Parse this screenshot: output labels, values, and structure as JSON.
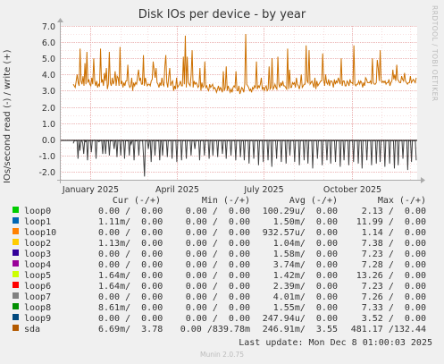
{
  "chart_data": {
    "type": "line",
    "title": "Disk IOs per device - by year",
    "ylabel": "IOs/second read (-) / write (+)",
    "ylim": [
      -2.5,
      7.0
    ],
    "yticks": [
      -2.0,
      -1.0,
      0.0,
      1.0,
      2.0,
      3.0,
      4.0,
      5.0,
      6.0,
      7.0
    ],
    "ytick_labels": [
      "-2.0",
      "-1.0",
      "0.0",
      "1.0",
      "2.0",
      "3.0",
      "4.0",
      "5.0",
      "6.0",
      "7.0"
    ],
    "xrange": [
      "2024-11-30",
      "2025-12-08"
    ],
    "xticks": [
      {
        "date": "2025-01-01",
        "label": "January 2025"
      },
      {
        "date": "2025-04-01",
        "label": "April 2025"
      },
      {
        "date": "2025-07-01",
        "label": "July 2025"
      },
      {
        "date": "2025-10-01",
        "label": "October 2025"
      }
    ],
    "grid": true,
    "series": [
      {
        "name": "sda",
        "write_color": "#cc7000",
        "read_color": "#404040",
        "x_start": "2024-12-14",
        "x_end": "2025-12-07",
        "write": [
          3.4,
          3.3,
          3.2,
          3.6,
          4.0,
          3.5,
          3.3,
          5.6,
          3.6,
          3.4,
          3.9,
          3.3,
          4.7,
          3.4,
          5.4,
          3.5,
          3.7,
          3.4,
          3.3,
          3.8,
          3.4,
          5.0,
          3.6,
          3.3,
          3.6,
          3.2,
          3.4,
          3.3,
          5.6,
          3.5,
          3.7,
          3.3,
          4.1,
          3.6,
          4.4,
          3.1,
          3.4,
          5.4,
          3.5,
          3.3,
          3.8,
          3.4,
          3.6,
          4.2,
          3.3,
          3.9,
          3.8,
          3.3,
          5.7,
          3.4,
          3.6,
          3.2,
          3.5,
          3.3,
          3.6,
          3.6,
          4.6,
          3.4,
          3.2,
          3.3,
          3.8,
          3.0,
          3.5,
          3.3,
          3.5,
          3.4,
          3.9,
          4.3,
          3.6,
          3.8,
          3.4,
          3.4,
          5.2,
          3.3,
          3.8,
          3.5,
          3.3,
          3.4,
          3.4,
          3.3,
          3.6,
          3.7,
          4.8,
          4.3,
          3.8,
          4.4,
          3.5,
          3.4,
          3.2,
          3.5,
          3.3,
          3.8,
          3.4,
          3.3,
          4.5,
          5.2,
          3.5,
          3.2,
          3.9,
          4.4,
          3.3,
          3.5,
          3.6,
          3.0,
          3.3,
          3.1,
          3.8,
          3.2,
          3.3,
          3.4,
          3.6,
          3.3,
          3.3,
          5.1,
          3.4,
          6.4,
          3.2,
          5.1,
          3.5,
          3.4,
          3.3,
          4.0,
          5.5,
          3.2,
          3.6,
          3.4,
          3.5,
          3.4,
          3.2,
          3.3,
          4.4,
          3.0,
          3.5,
          3.2,
          3.3,
          4.8,
          3.2,
          3.3,
          3.1,
          3.0,
          3.4,
          3.2,
          3.3,
          3.4,
          3.1,
          3.2,
          3.1,
          2.9,
          3.1,
          3.3,
          3.0,
          3.2,
          3.1,
          2.9,
          4.2,
          3.0,
          3.2,
          4.5,
          3.0,
          3.3,
          3.1,
          2.9,
          3.1,
          2.9,
          3.2,
          3.3,
          3.2,
          4.2,
          3.0,
          3.0,
          3.3,
          2.8,
          3.0,
          3.2,
          3.1,
          2.9,
          3.4,
          6.5,
          3.4,
          3.3,
          3.2,
          3.0,
          3.1,
          2.9,
          3.2,
          3.1,
          3.3,
          3.2,
          4.8,
          3.1,
          3.3,
          3.2,
          3.4,
          3.8,
          3.1,
          3.2,
          3.0,
          3.2,
          3.3,
          3.0,
          3.1,
          4.5,
          3.1,
          3.2,
          5.0,
          3.1,
          3.2,
          3.4,
          3.2,
          3.1,
          5.1,
          3.4,
          3.2,
          3.5,
          3.3,
          3.6,
          3.3,
          3.3,
          3.2,
          3.1,
          5.6,
          3.1,
          4.3,
          3.2,
          3.2,
          3.5,
          3.4,
          3.5,
          3.2,
          3.8,
          3.4,
          3.3,
          3.1,
          3.4,
          4.0,
          3.2,
          3.3,
          3.4,
          3.4,
          5.8,
          3.6,
          3.5,
          5.5,
          3.4,
          3.5,
          3.6,
          3.4,
          3.2,
          3.8,
          3.1,
          3.6,
          3.3,
          3.4,
          3.5,
          3.6,
          3.6,
          5.3,
          3.7,
          3.3,
          4.0,
          3.5,
          3.4,
          3.7,
          3.3,
          3.6,
          3.6,
          3.5,
          3.2,
          3.7,
          3.4,
          3.6,
          3.5,
          3.8,
          3.6,
          3.4,
          5.0,
          3.3,
          3.6,
          3.6,
          3.3,
          3.3,
          3.6,
          3.5,
          3.3,
          3.7,
          3.5,
          3.5,
          3.4,
          5.8,
          3.4,
          3.3,
          3.4,
          3.4,
          3.6,
          3.4,
          3.6,
          3.5,
          3.2,
          3.5,
          3.3,
          3.8,
          3.7,
          3.5,
          3.5,
          3.5,
          3.6,
          3.4,
          5.0,
          3.5,
          3.4,
          3.4,
          3.5,
          4.9,
          4.4,
          3.6,
          5.5,
          3.6,
          3.5,
          3.6,
          3.5,
          3.6,
          3.4,
          3.5,
          3.5,
          3.7,
          3.3,
          3.5,
          3.6,
          4.3,
          3.7,
          4.0,
          3.6,
          4.6,
          3.7,
          3.6,
          3.5,
          3.5,
          3.9,
          3.7,
          3.6,
          4.1,
          3.6,
          3.5,
          3.4,
          3.5,
          3.5,
          3.9,
          3.5,
          3.6,
          3.7,
          3.6,
          3.5,
          3.8
        ],
        "read": [
          -0.25,
          -0.1,
          -0.08,
          -0.08,
          -0.1,
          -1.2,
          -0.08,
          -0.7,
          -0.1,
          -0.08,
          -0.25,
          -0.9,
          -0.08,
          -0.15,
          -0.08,
          -1.3,
          -0.1,
          -0.08,
          -0.08,
          -0.8,
          -0.08,
          -0.08,
          -0.06,
          -0.08,
          -1.2,
          -0.08,
          -0.08,
          -0.15,
          -0.1,
          -0.08,
          -0.08,
          -0.9,
          -0.08,
          -0.08,
          -0.9,
          -0.08,
          -0.08,
          -0.08,
          -1.0,
          -0.08,
          -0.1,
          -0.08,
          -0.08,
          -0.6,
          -0.08,
          -0.08,
          -1.1,
          -0.08,
          -0.08,
          -0.08,
          -1.0,
          -0.08,
          -0.08,
          -0.08,
          -1.2,
          -0.08,
          -0.08,
          -0.1,
          -0.08,
          -1.0,
          -0.08,
          -0.3,
          -0.08,
          -0.08,
          -1.3,
          -0.08,
          -0.1,
          -0.08,
          -0.08,
          -1.0,
          -0.08,
          -0.08,
          -0.08,
          -0.08,
          -1.1,
          -2.3,
          -0.08,
          -0.08,
          -0.08,
          -0.6,
          -0.08,
          -0.08,
          -1.4,
          -0.08,
          -0.08,
          -0.08,
          -1.0,
          -0.08,
          -0.08,
          -0.1,
          -0.08,
          -1.3,
          -0.08,
          -0.08,
          -1.0,
          -0.08,
          -0.08,
          -0.08,
          -0.08,
          -1.1,
          -0.08,
          -0.08,
          -0.08,
          -0.08,
          -1.2,
          -0.08,
          -0.08,
          -0.08,
          -0.08,
          -1.4,
          -0.08,
          -0.08,
          -0.08,
          -0.08,
          -1.3,
          -0.08,
          -0.08,
          -0.08,
          -0.08,
          -1.2,
          -0.08,
          -0.08,
          -0.08,
          -0.08,
          -1.0,
          -0.08,
          -0.08,
          -0.08,
          -0.6,
          -0.08,
          -0.08,
          -0.08,
          -0.08,
          -1.3,
          -0.08,
          -0.08,
          -0.08,
          -0.08,
          -1.0,
          -0.08,
          -0.08,
          -0.08,
          -0.08,
          -1.2,
          -0.08,
          -0.08,
          -0.08,
          -1.0,
          -0.08,
          -0.08,
          -0.08,
          -0.08,
          -1.1,
          -0.08,
          -0.08,
          -0.08,
          -0.08,
          -0.9,
          -0.08,
          -0.08,
          -0.08,
          -1.2,
          -0.08,
          -0.08,
          -0.08,
          -0.08,
          -1.0,
          -0.08,
          -0.08,
          -0.08,
          -0.08,
          -1.3,
          -0.08,
          -0.08,
          -0.08,
          -0.08,
          -1.1,
          -0.08,
          -0.08,
          -0.08,
          -1.3,
          -0.08,
          -0.08,
          -0.08,
          -0.08,
          -1.5,
          -0.08,
          -0.08,
          -0.08,
          -0.08,
          -1.2,
          -0.08,
          -0.08,
          -0.08,
          -0.08,
          -1.6,
          -0.08,
          -0.08,
          -0.08,
          -0.08,
          -1.4,
          -0.08,
          -0.08,
          -0.08,
          -0.08,
          -1.3,
          -0.08,
          -0.08,
          -0.08,
          -1.7,
          -0.08,
          -0.08,
          -0.08,
          -0.08,
          -1.2,
          -0.08,
          -0.08,
          -0.08,
          -0.08,
          -1.4,
          -0.08,
          -0.08,
          -0.08,
          -0.08,
          -1.5,
          -0.08,
          -0.08,
          -0.08,
          -1.0,
          -0.08,
          -0.08,
          -0.08,
          -0.08,
          -1.4,
          -0.08,
          -0.08,
          -0.08,
          -0.08,
          -1.6,
          -0.08,
          -0.08,
          -0.08,
          -0.08,
          -1.3,
          -0.08,
          -0.08,
          -0.08,
          -1.5,
          -0.08,
          -0.08,
          -0.08,
          -0.08,
          -1.8,
          -0.08,
          -0.08,
          -0.08,
          -0.08,
          -1.2,
          -0.08,
          -0.08,
          -0.08,
          -0.08,
          -1.6,
          -0.08,
          -0.08,
          -0.08,
          -0.08,
          -1.3,
          -0.08,
          -0.08,
          -0.08,
          -1.5,
          -0.08,
          -0.08,
          -0.08,
          -0.08,
          -1.4,
          -0.08,
          -0.08,
          -0.08,
          -0.08,
          -1.7,
          -0.08,
          -0.08,
          -0.08,
          -1.3,
          -0.08,
          -0.08,
          -0.08,
          -0.08,
          -1.6,
          -0.08,
          -0.08,
          -0.08,
          -0.08,
          -1.4,
          -0.08,
          -0.08,
          -0.08,
          -0.08,
          -1.5,
          -0.08,
          -0.08,
          -0.08,
          -1.8,
          -0.08,
          -0.08,
          -0.08,
          -0.08,
          -1.3,
          -0.08,
          -0.08,
          -0.08,
          -0.08,
          -1.6,
          -0.08,
          -0.08,
          -0.08,
          -0.08,
          -1.5,
          -0.08,
          -0.08,
          -0.08,
          -1.4,
          -0.08,
          -0.08,
          -0.08,
          -0.08,
          -1.7,
          -0.08,
          -0.08,
          -0.08,
          -0.08,
          -1.5,
          -0.08,
          -0.08,
          -0.08,
          -0.08,
          -1.8,
          -0.08,
          -0.08,
          -0.08,
          -1.6,
          -0.08,
          -0.08,
          -0.08,
          -0.08,
          -1.2,
          -0.08,
          -0.08,
          -0.08,
          -0.08,
          -1.9,
          -0.08,
          -0.08,
          -0.08,
          -1.4,
          -0.08,
          -0.08,
          -0.08,
          -0.08,
          -1.3
        ]
      }
    ]
  },
  "legend": {
    "headers": {
      "cur": "Cur (-/+)",
      "min": "Min (-/+)",
      "avg": "Avg (-/+)",
      "max": "Max (-/+)"
    },
    "rows": [
      {
        "name": "loop0",
        "color": "#00cc00",
        "cur": "0.00 /  0.00",
        "min": "0.00 /  0.00",
        "avg": "100.29u/  0.00",
        "max": "2.13 /  0.00"
      },
      {
        "name": "loop1",
        "color": "#0066b3",
        "cur": "1.11m/  0.00",
        "min": "0.00 /  0.00",
        "avg": "1.50m/  0.00",
        "max": "11.99 /  0.00"
      },
      {
        "name": "loop10",
        "color": "#ff8000",
        "cur": "0.00 /  0.00",
        "min": "0.00 /  0.00",
        "avg": "932.57u/  0.00",
        "max": "1.14 /  0.00"
      },
      {
        "name": "loop2",
        "color": "#ffcc00",
        "cur": "1.13m/  0.00",
        "min": "0.00 /  0.00",
        "avg": "1.04m/  0.00",
        "max": "7.38 /  0.00"
      },
      {
        "name": "loop3",
        "color": "#330099",
        "cur": "0.00 /  0.00",
        "min": "0.00 /  0.00",
        "avg": "1.58m/  0.00",
        "max": "7.23 /  0.00"
      },
      {
        "name": "loop4",
        "color": "#990099",
        "cur": "0.00 /  0.00",
        "min": "0.00 /  0.00",
        "avg": "3.74m/  0.00",
        "max": "7.28 /  0.00"
      },
      {
        "name": "loop5",
        "color": "#ccff00",
        "cur": "1.64m/  0.00",
        "min": "0.00 /  0.00",
        "avg": "1.42m/  0.00",
        "max": "13.26 /  0.00"
      },
      {
        "name": "loop6",
        "color": "#ff0000",
        "cur": "1.64m/  0.00",
        "min": "0.00 /  0.00",
        "avg": "2.39m/  0.00",
        "max": "7.23 /  0.00"
      },
      {
        "name": "loop7",
        "color": "#808080",
        "cur": "0.00 /  0.00",
        "min": "0.00 /  0.00",
        "avg": "4.01m/  0.00",
        "max": "7.26 /  0.00"
      },
      {
        "name": "loop8",
        "color": "#008f00",
        "cur": "8.61m/  0.00",
        "min": "0.00 /  0.00",
        "avg": "1.55m/  0.00",
        "max": "7.33 /  0.00"
      },
      {
        "name": "loop9",
        "color": "#00487d",
        "cur": "0.00 /  0.00",
        "min": "0.00 /  0.00",
        "avg": "247.94u/  0.00",
        "max": "3.52 /  0.00"
      },
      {
        "name": "sda",
        "color": "#b35a00",
        "cur": "6.69m/  3.78",
        "min": "0.00 /839.78m",
        "avg": "246.91m/  3.55",
        "max": "481.17 /132.44"
      }
    ]
  },
  "last_update": "Last update: Mon Dec  8 01:00:03 2025",
  "watermark": "RRDTOOL / TOBI OETIKER",
  "footer": "Munin 2.0.75"
}
